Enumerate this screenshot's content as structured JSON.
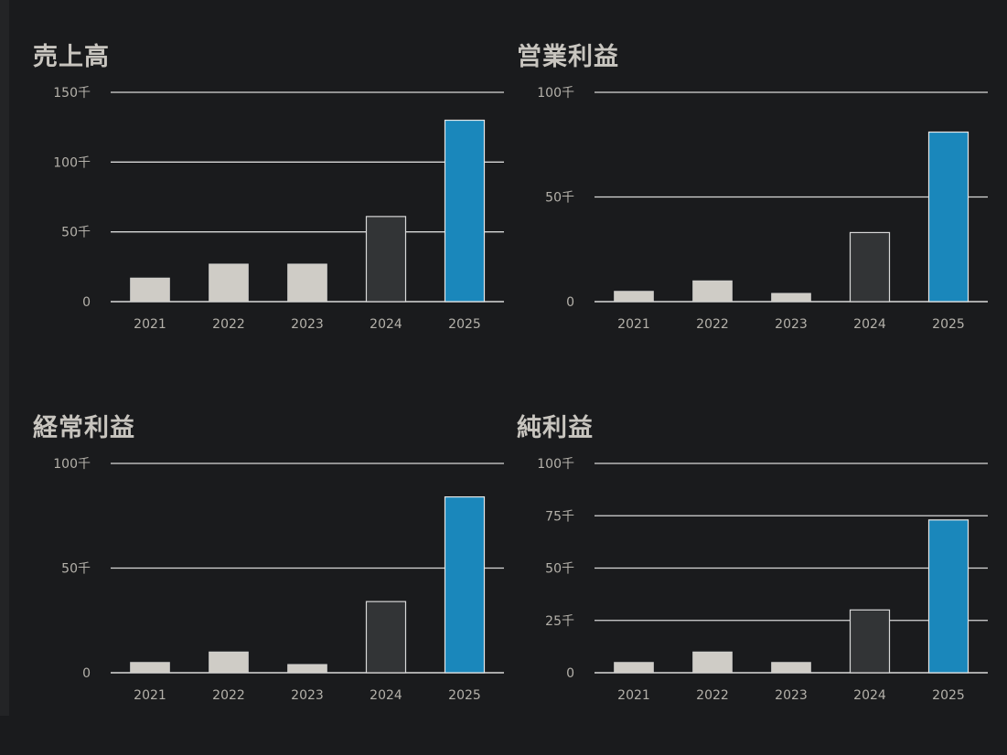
{
  "colors": {
    "background": "#1a1b1d",
    "bar_light": "#cfccc6",
    "bar_dark": "#323436",
    "bar_accent": "#1a87bb",
    "grid": "#d9d9d9",
    "text": "#b4b1aa"
  },
  "chart_data": [
    {
      "type": "bar",
      "title": "売上高",
      "categories": [
        "2021",
        "2022",
        "2023",
        "2024",
        "2025"
      ],
      "values": [
        17000,
        27000,
        27000,
        61000,
        130000
      ],
      "bar_colors": [
        "light",
        "light",
        "light",
        "dark",
        "accent"
      ],
      "ylim": [
        0,
        150000
      ],
      "yticks": [
        0,
        50000,
        100000,
        150000
      ],
      "ytick_labels": [
        "0",
        "50千",
        "100千",
        "150千"
      ],
      "grid": true
    },
    {
      "type": "bar",
      "title": "営業利益",
      "categories": [
        "2021",
        "2022",
        "2023",
        "2024",
        "2025"
      ],
      "values": [
        5000,
        10000,
        4000,
        33000,
        81000
      ],
      "bar_colors": [
        "light",
        "light",
        "light",
        "dark",
        "accent"
      ],
      "ylim": [
        0,
        100000
      ],
      "yticks": [
        0,
        50000,
        100000
      ],
      "ytick_labels": [
        "0",
        "50千",
        "100千"
      ],
      "grid": true
    },
    {
      "type": "bar",
      "title": "経常利益",
      "categories": [
        "2021",
        "2022",
        "2023",
        "2024",
        "2025"
      ],
      "values": [
        5000,
        10000,
        4000,
        34000,
        84000
      ],
      "bar_colors": [
        "light",
        "light",
        "light",
        "dark",
        "accent"
      ],
      "ylim": [
        0,
        100000
      ],
      "yticks": [
        0,
        50000,
        100000
      ],
      "ytick_labels": [
        "0",
        "50千",
        "100千"
      ],
      "grid": true
    },
    {
      "type": "bar",
      "title": "純利益",
      "categories": [
        "2021",
        "2022",
        "2023",
        "2024",
        "2025"
      ],
      "values": [
        5000,
        10000,
        5000,
        30000,
        73000
      ],
      "bar_colors": [
        "light",
        "light",
        "light",
        "dark",
        "accent"
      ],
      "ylim": [
        0,
        100000
      ],
      "yticks": [
        0,
        25000,
        50000,
        75000,
        100000
      ],
      "ytick_labels": [
        "0",
        "25千",
        "50千",
        "75千",
        "100千"
      ],
      "grid": true
    }
  ]
}
